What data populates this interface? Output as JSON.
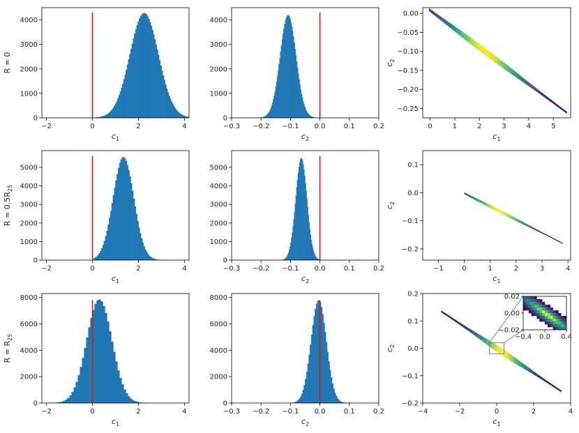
{
  "figure": {
    "rows": [
      {
        "label": "R = 0",
        "label_sub": "",
        "hist_c1": {
          "type": "bar",
          "xlabel_main": "c",
          "xlabel_sub": "1",
          "xlim": [
            -2.2,
            4.2
          ],
          "ylim": [
            0,
            4500
          ],
          "xticks": [
            -2,
            0,
            2,
            4
          ],
          "yticks": [
            0,
            1000,
            2000,
            3000,
            4000
          ],
          "xtick_labels": [
            "−2",
            "0",
            "2",
            "4"
          ],
          "ytick_labels": [
            "0",
            "1000",
            "2000",
            "3000",
            "4000"
          ],
          "red_line_x": 0,
          "red_line_top": 4300,
          "dist": {
            "mean": 2.25,
            "sd": 0.62,
            "peak": 4280,
            "lo": 0.05,
            "hi": 4.2,
            "bins": 80
          }
        },
        "hist_c2": {
          "type": "bar",
          "xlabel_main": "c",
          "xlabel_sub": "2",
          "xlim": [
            -0.3,
            0.2
          ],
          "ylim": [
            0,
            4500
          ],
          "xticks": [
            -0.3,
            -0.2,
            -0.1,
            0.0,
            0.1,
            0.2
          ],
          "yticks": [
            0,
            1000,
            2000,
            3000,
            4000
          ],
          "xtick_labels": [
            "−0.3",
            "−0.2",
            "−0.1",
            "0.0",
            "0.1",
            "0.2"
          ],
          "ytick_labels": [
            "0",
            "1000",
            "2000",
            "3000",
            "4000"
          ],
          "red_line_x": 0,
          "red_line_top": 4300,
          "dist": {
            "mean": -0.108,
            "sd": 0.027,
            "peak": 4200,
            "lo": -0.22,
            "hi": 0.0,
            "bins": 80
          }
        },
        "scatter": {
          "type": "heatmap",
          "xlabel_main": "c",
          "xlabel_sub": "1",
          "ylabel_main": "c",
          "ylabel_sub": "2",
          "xlim": [
            -0.3,
            5.7
          ],
          "ylim": [
            -0.275,
            0.015
          ],
          "xticks": [
            0,
            1,
            2,
            3,
            4,
            5
          ],
          "yticks": [
            0.0,
            -0.05,
            -0.1,
            -0.15,
            -0.2,
            -0.25
          ],
          "xtick_labels": [
            "0",
            "1",
            "2",
            "3",
            "4",
            "5"
          ],
          "ytick_labels": [
            "0.00",
            "−0.05",
            "−0.10",
            "−0.15",
            "−0.20",
            "−0.25"
          ],
          "band": {
            "x0": -0.05,
            "x1": 5.55,
            "y_at_x0": 0.01,
            "slope": -0.0485,
            "center": 2.25,
            "spread": 1.3,
            "width": 0.006
          }
        }
      },
      {
        "label": "R = 0.5R",
        "label_sub": "25",
        "hist_c1": {
          "type": "bar",
          "xlabel_main": "c",
          "xlabel_sub": "1",
          "xlim": [
            -2.2,
            4.2
          ],
          "ylim": [
            0,
            5900
          ],
          "xticks": [
            -2,
            0,
            2,
            4
          ],
          "yticks": [
            0,
            1000,
            2000,
            3000,
            4000,
            5000
          ],
          "xtick_labels": [
            "−2",
            "0",
            "2",
            "4"
          ],
          "ytick_labels": [
            "0",
            "1000",
            "2000",
            "3000",
            "4000",
            "5000"
          ],
          "red_line_x": 0,
          "red_line_top": 5600,
          "dist": {
            "mean": 1.35,
            "sd": 0.45,
            "peak": 5550,
            "lo": 0.05,
            "hi": 3.4,
            "bins": 60
          }
        },
        "hist_c2": {
          "type": "bar",
          "xlabel_main": "c",
          "xlabel_sub": "2",
          "xlim": [
            -0.3,
            0.2
          ],
          "ylim": [
            0,
            5900
          ],
          "xticks": [
            -0.3,
            -0.2,
            -0.1,
            0.0,
            0.1,
            0.2
          ],
          "yticks": [
            0,
            1000,
            2000,
            3000,
            4000,
            5000
          ],
          "xtick_labels": [
            "−0.3",
            "−0.2",
            "−0.1",
            "0.0",
            "0.1",
            "0.2"
          ],
          "ytick_labels": [
            "0",
            "1000",
            "2000",
            "3000",
            "4000",
            "5000"
          ],
          "red_line_x": 0,
          "red_line_top": 5600,
          "dist": {
            "mean": -0.063,
            "sd": 0.019,
            "peak": 5500,
            "lo": -0.15,
            "hi": 0.0,
            "bins": 60
          }
        },
        "scatter": {
          "type": "heatmap",
          "xlabel_main": "c",
          "xlabel_sub": "1",
          "ylabel_main": "c",
          "ylabel_sub": "2",
          "xlim": [
            -1.6,
            4.1
          ],
          "ylim": [
            -0.24,
            0.15
          ],
          "xticks": [
            -1,
            0,
            1,
            2,
            3,
            4
          ],
          "yticks": [
            0.1,
            0.0,
            -0.1,
            -0.2
          ],
          "xtick_labels": [
            "−1",
            "0",
            "1",
            "2",
            "3",
            "4"
          ],
          "ytick_labels": [
            "0.1",
            "0.0",
            "−0.1",
            "−0.2"
          ],
          "band": {
            "x0": 0.0,
            "x1": 3.8,
            "y_at_x0": -0.002,
            "slope": -0.047,
            "center": 1.35,
            "spread": 0.9,
            "width": 0.004
          }
        }
      },
      {
        "label": "R = R",
        "label_sub": "25",
        "hist_c1": {
          "type": "bar",
          "xlabel_main": "c",
          "xlabel_sub": "1",
          "xlim": [
            -2.2,
            4.2
          ],
          "ylim": [
            0,
            8300
          ],
          "xticks": [
            -2,
            0,
            2,
            4
          ],
          "yticks": [
            0,
            2000,
            4000,
            6000,
            8000
          ],
          "xtick_labels": [
            "−2",
            "0",
            "2",
            "4"
          ],
          "ytick_labels": [
            "0",
            "2000",
            "4000",
            "6000",
            "8000"
          ],
          "red_line_x": 0,
          "red_line_top": 7800,
          "dist": {
            "mean": 0.3,
            "sd": 0.55,
            "peak": 7850,
            "lo": -2.0,
            "hi": 3.0,
            "bins": 55
          }
        },
        "hist_c2": {
          "type": "bar",
          "xlabel_main": "c",
          "xlabel_sub": "2",
          "xlim": [
            -0.3,
            0.2
          ],
          "ylim": [
            0,
            8300
          ],
          "xticks": [
            -0.3,
            -0.2,
            -0.1,
            0.0,
            0.1,
            0.2
          ],
          "yticks": [
            0,
            2000,
            4000,
            6000,
            8000
          ],
          "xtick_labels": [
            "−0.3",
            "−0.2",
            "−0.1",
            "0.0",
            "0.1",
            "0.2"
          ],
          "ytick_labels": [
            "0",
            "2000",
            "4000",
            "6000",
            "8000"
          ],
          "red_line_x": 0,
          "red_line_top": 7800,
          "dist": {
            "mean": -0.004,
            "sd": 0.026,
            "peak": 7800,
            "lo": -0.13,
            "hi": 0.1,
            "bins": 55
          }
        },
        "scatter": {
          "type": "heatmap",
          "xlabel_main": "c",
          "xlabel_sub": "1",
          "ylabel_main": "c",
          "ylabel_sub": "2",
          "xlim": [
            -4.0,
            4.0
          ],
          "ylim": [
            -0.2,
            0.2
          ],
          "xticks": [
            -4,
            -2,
            0,
            2,
            4
          ],
          "yticks": [
            0.2,
            0.1,
            0.0,
            -0.1,
            -0.2
          ],
          "xtick_labels": [
            "−4",
            "−2",
            "0",
            "2",
            "4"
          ],
          "ytick_labels": [
            "0.2",
            "0.1",
            "0.0",
            "−0.1",
            "−0.2"
          ],
          "band": {
            "x0": -3.0,
            "x1": 3.5,
            "y_at_x0": 0.135,
            "slope": -0.045,
            "center": 0.3,
            "spread": 1.1,
            "width": 0.008
          },
          "inset": {
            "xlim": [
              -0.4,
              0.4
            ],
            "ylim": [
              -0.02,
              0.02
            ],
            "xtick_labels": [
              "−0.4",
              "0.0",
              "0.4"
            ],
            "ytick_labels": [
              "0.02",
              "0.00",
              "−0.02"
            ],
            "zoom_box": {
              "x0": -0.4,
              "x1": 0.4,
              "y0": -0.02,
              "y1": 0.02
            }
          }
        }
      }
    ],
    "colors": {
      "bar": "#1f77b4",
      "red_line": "#e3140b",
      "axis": "#000000",
      "inset_frame": "#808080",
      "heat_low": "#440154",
      "heat_mid": "#21918c",
      "heat_high": "#fde725"
    }
  }
}
